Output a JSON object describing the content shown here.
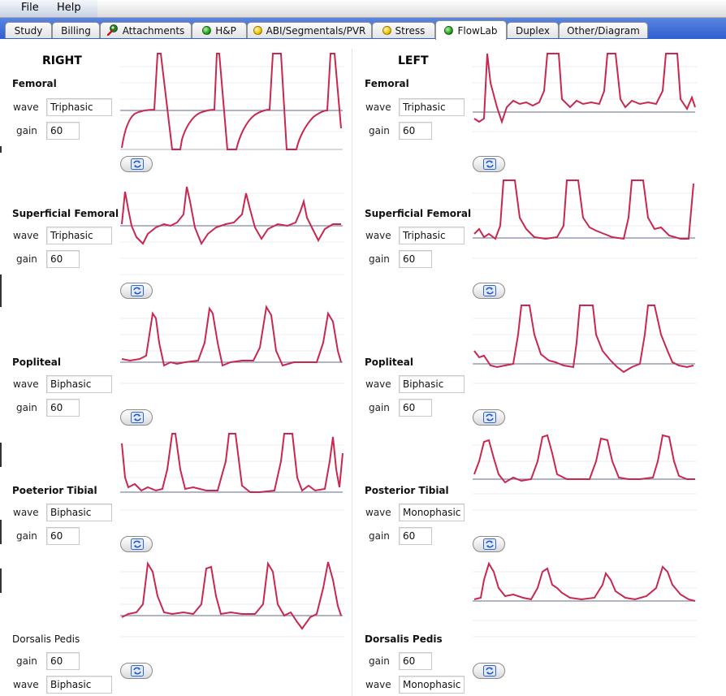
{
  "menu": {
    "items": [
      "File",
      "Help"
    ]
  },
  "tabs": [
    {
      "label": "Study",
      "icon": null
    },
    {
      "label": "Billing",
      "icon": null
    },
    {
      "label": "Attachments",
      "icon": "paperclip-icon"
    },
    {
      "label": "H&P",
      "icon": "green"
    },
    {
      "label": "ABI/Segmentals/PVR",
      "icon": "yellow"
    },
    {
      "label": "Stress",
      "icon": "yellow"
    },
    {
      "label": "FlowLab",
      "icon": "green",
      "selected": true
    },
    {
      "label": "Duplex",
      "icon": null
    },
    {
      "label": "Other/Diagram",
      "icon": null
    }
  ],
  "right": {
    "title": "RIGHT",
    "vessels": [
      {
        "name": "Femoral",
        "wave_label": "wave",
        "wave": "Triphasic",
        "gain_label": "gain",
        "gain": "60"
      },
      {
        "name": "Superficial Femoral",
        "wave_label": "wave",
        "wave": "Triphasic",
        "gain_label": "gain",
        "gain": "60"
      },
      {
        "name": "Popliteal",
        "wave_label": "wave",
        "wave": "Biphasic",
        "gain_label": "gain",
        "gain": "60"
      },
      {
        "name": "Poeterior Tibial",
        "wave_label": "wave",
        "wave": "Biphasic",
        "gain_label": "gain",
        "gain": "60"
      },
      {
        "name": "Dorsalis Pedis",
        "wave_label": "wave",
        "wave": "Biphasic",
        "gain_label": "gain",
        "gain": "60"
      }
    ]
  },
  "left": {
    "title": "LEFT",
    "vessels": [
      {
        "name": "Femoral",
        "wave_label": "wave",
        "wave": "Triphasic",
        "gain_label": "gain",
        "gain": "60"
      },
      {
        "name": "Superficial Femoral",
        "wave_label": "wave",
        "wave": "Triphasic",
        "gain_label": "gain",
        "gain": "60"
      },
      {
        "name": "Popliteal",
        "wave_label": "wave",
        "wave": "Biphasic",
        "gain_label": "gain",
        "gain": "60"
      },
      {
        "name": "Posterior Tibial",
        "wave_label": "wave",
        "wave": "Monophasic",
        "gain_label": "gain",
        "gain": "60"
      },
      {
        "name": "Dorsalis Pedis",
        "wave_label": "wave",
        "wave": "Monophasic",
        "gain_label": "gain",
        "gain": "60"
      }
    ]
  },
  "colors": {
    "waveform": "#c8284f",
    "baseline": "#8088a0",
    "grid": "#eeeeee",
    "tab_bar": "#3a68d8"
  }
}
